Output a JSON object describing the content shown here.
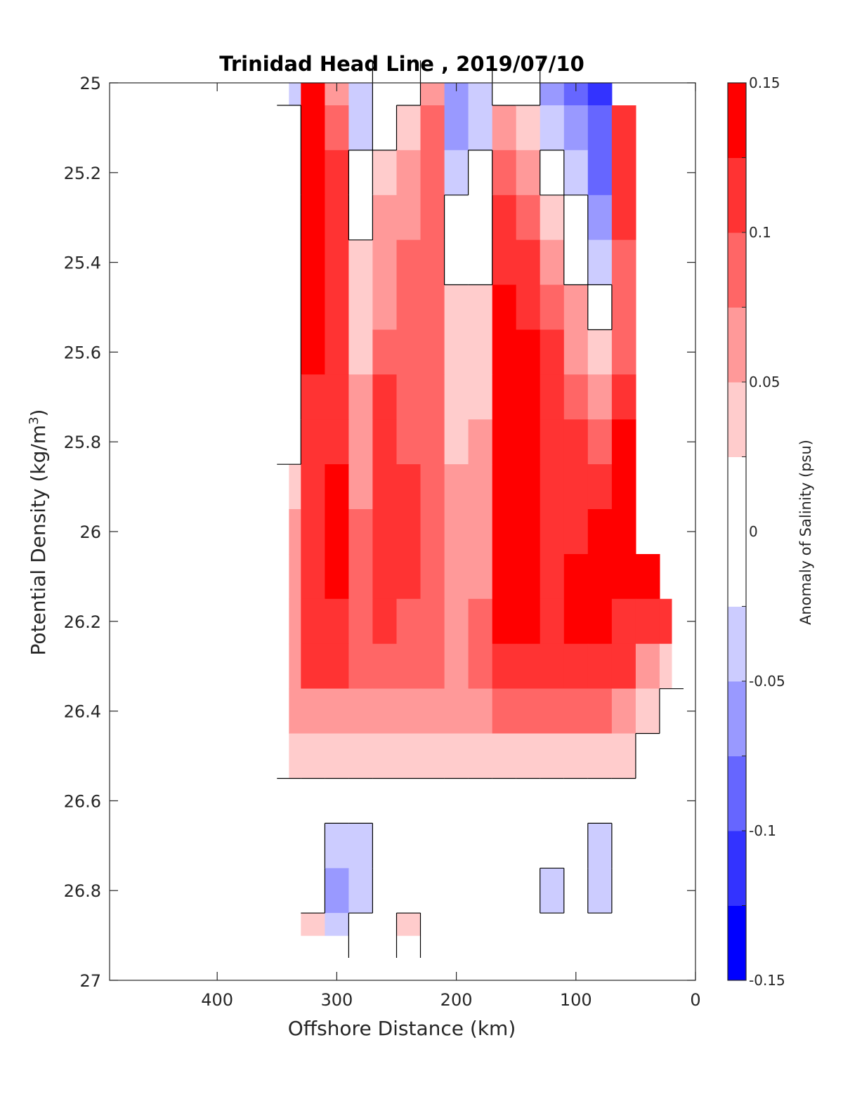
{
  "chart_data": {
    "type": "contour",
    "title": "Trinidad Head Line , 2019/07/10",
    "xlabel": "Offshore Distance (km)",
    "ylabel": "Potential Density (kg/m",
    "ylabel_sup": "3",
    "ylabel_close": ")",
    "colorbar_label": "Anomaly of Salinity (psu)",
    "xlim": [
      490,
      0
    ],
    "ylim": [
      27,
      25
    ],
    "x_reversed": true,
    "y_reversed": true,
    "xticks": [
      400,
      300,
      200,
      100,
      0
    ],
    "yticks": [
      25,
      25.2,
      25.4,
      25.6,
      25.8,
      26,
      26.2,
      26.4,
      26.6,
      26.8,
      27
    ],
    "xticklabels": [
      "400",
      "300",
      "200",
      "100",
      "0"
    ],
    "yticklabels": [
      "25",
      "25.2",
      "25.4",
      "25.6",
      "25.8",
      "26",
      "26.2",
      "26.4",
      "26.6",
      "26.8",
      "27"
    ],
    "colorbar_ticks": [
      "0.15",
      "0.1",
      "0.05",
      "0",
      "-0.05",
      "-0.1",
      "-0.15"
    ],
    "colorbar_tick_values": [
      0.15,
      0.1,
      0.05,
      0,
      -0.05,
      -0.1,
      -0.15
    ],
    "levels": [
      -0.15,
      -0.125,
      -0.1,
      -0.075,
      -0.05,
      -0.025,
      0.025,
      0.05,
      0.075,
      0.1,
      0.125,
      0.15
    ],
    "colors": [
      "#0000ff",
      "#3333ff",
      "#6666ff",
      "#9999ff",
      "#ccccff",
      "#ffffff",
      "#ffcccc",
      "#ff9999",
      "#ff6666",
      "#ff3333",
      "#ff0000"
    ],
    "grid": false,
    "data_extent": {
      "x": [
        340,
        20
      ],
      "y": [
        25,
        26.9
      ]
    },
    "cells": {
      "x": [
        340,
        320,
        300,
        280,
        260,
        240,
        220,
        200,
        180,
        160,
        140,
        120,
        100,
        80,
        60,
        40,
        20
      ],
      "y": [
        25.0,
        25.1,
        25.2,
        25.3,
        25.4,
        25.5,
        25.6,
        25.7,
        25.8,
        25.9,
        26.0,
        26.1,
        26.2,
        26.3,
        26.4,
        26.5,
        26.6,
        26.7,
        26.8,
        26.9
      ],
      "z": [
        [
          -0.03,
          0.13,
          0.07,
          -0.04,
          0.0,
          -0.01,
          0.06,
          -0.07,
          -0.05,
          0.02,
          0.0,
          -0.06,
          -0.09,
          -0.11,
          null,
          null,
          null
        ],
        [
          -0.01,
          0.13,
          0.08,
          -0.03,
          0.01,
          0.03,
          0.08,
          -0.06,
          -0.04,
          0.06,
          0.03,
          -0.04,
          -0.07,
          -0.1,
          0.1,
          null,
          null
        ],
        [
          0.0,
          0.13,
          0.1,
          0.0,
          0.03,
          0.06,
          0.09,
          -0.03,
          -0.02,
          0.08,
          0.06,
          0.0,
          -0.04,
          -0.08,
          0.1,
          null,
          null
        ],
        [
          0.0,
          0.13,
          0.11,
          0.02,
          0.05,
          0.07,
          0.09,
          0.0,
          0.0,
          0.1,
          0.09,
          0.03,
          -0.02,
          -0.06,
          0.1,
          null,
          null
        ],
        [
          0.0,
          0.14,
          0.12,
          0.03,
          0.06,
          0.08,
          0.09,
          0.02,
          0.01,
          0.12,
          0.11,
          0.06,
          0.02,
          -0.04,
          0.09,
          null,
          null
        ],
        [
          0.0,
          0.14,
          0.12,
          0.04,
          0.07,
          0.09,
          0.09,
          0.03,
          0.03,
          0.13,
          0.12,
          0.08,
          0.05,
          0.0,
          0.09,
          null,
          null
        ],
        [
          0.0,
          0.13,
          0.12,
          0.04,
          0.09,
          0.09,
          0.09,
          0.04,
          0.03,
          0.13,
          0.13,
          0.1,
          0.07,
          0.03,
          0.09,
          null,
          null
        ],
        [
          0.0,
          0.12,
          0.12,
          0.05,
          0.1,
          0.09,
          0.09,
          0.04,
          0.04,
          0.14,
          0.13,
          0.11,
          0.09,
          0.05,
          0.1,
          null,
          null
        ],
        [
          0.02,
          0.12,
          0.12,
          0.06,
          0.11,
          0.09,
          0.08,
          0.04,
          0.05,
          0.14,
          0.13,
          0.11,
          0.1,
          0.08,
          0.13,
          null,
          null
        ],
        [
          0.03,
          0.11,
          0.13,
          0.07,
          0.11,
          0.1,
          0.09,
          0.05,
          0.05,
          0.14,
          0.14,
          0.12,
          0.11,
          0.1,
          0.13,
          null,
          null
        ],
        [
          0.05,
          0.11,
          0.13,
          0.08,
          0.11,
          0.1,
          0.09,
          0.06,
          0.06,
          0.14,
          0.14,
          0.12,
          0.12,
          0.13,
          0.13,
          null,
          null
        ],
        [
          0.06,
          0.11,
          0.13,
          0.09,
          0.11,
          0.1,
          0.09,
          0.07,
          0.07,
          0.14,
          0.14,
          0.12,
          0.13,
          0.13,
          0.13,
          0.13,
          null
        ],
        [
          0.07,
          0.11,
          0.12,
          0.09,
          0.11,
          0.09,
          0.09,
          0.07,
          0.08,
          0.13,
          0.13,
          0.12,
          0.13,
          0.13,
          0.12,
          0.11,
          0.11
        ],
        [
          0.06,
          0.1,
          0.1,
          0.08,
          0.09,
          0.08,
          0.08,
          0.07,
          0.08,
          0.11,
          0.11,
          0.1,
          0.11,
          0.12,
          0.1,
          0.07,
          0.04
        ],
        [
          0.05,
          0.07,
          0.07,
          0.06,
          0.06,
          0.06,
          0.06,
          0.06,
          0.07,
          0.08,
          0.08,
          0.08,
          0.08,
          0.08,
          0.06,
          0.04,
          0.02
        ],
        [
          0.03,
          0.04,
          0.04,
          0.03,
          0.03,
          0.04,
          0.04,
          0.04,
          0.04,
          0.04,
          0.04,
          0.04,
          0.04,
          0.03,
          0.03,
          0.02,
          0.0
        ],
        [
          0.02,
          0.0,
          0.0,
          0.0,
          0.01,
          0.02,
          0.0,
          0.0,
          0.01,
          0.02,
          0.02,
          0.02,
          0.0,
          0.0,
          0.02,
          0.01,
          null
        ],
        [
          null,
          -0.01,
          -0.04,
          -0.03,
          -0.01,
          0.0,
          0.0,
          0.0,
          0.0,
          0.0,
          0.0,
          0.0,
          0.0,
          -0.03,
          0.0,
          0.0,
          null
        ],
        [
          null,
          -0.01,
          -0.06,
          -0.03,
          -0.01,
          0.0,
          0.0,
          0.0,
          0.0,
          0.0,
          0.0,
          -0.03,
          0.0,
          -0.03,
          0.0,
          null,
          null
        ],
        [
          null,
          0.03,
          -0.03,
          -0.01,
          0.0,
          0.03,
          0.0,
          0.0,
          0.0,
          0.0,
          0.0,
          0.0,
          0.0,
          -0.01,
          0.0,
          null,
          null
        ]
      ]
    }
  }
}
